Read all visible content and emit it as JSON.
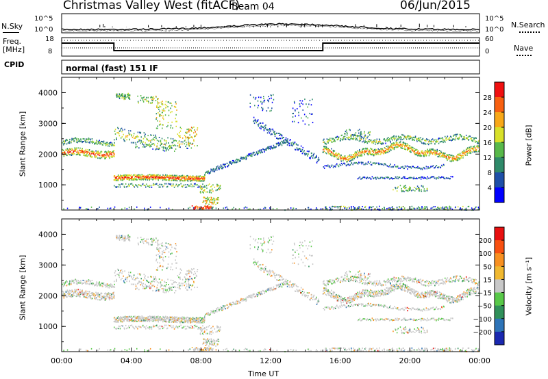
{
  "header": {
    "station": "Christmas Valley West (fitACF)",
    "beam": "Beam 04",
    "date": "06/Jun/2015"
  },
  "sky_panel": {
    "left_label": "N.Sky",
    "right_label": "N.Search",
    "left_ticks": [
      "10^5",
      "10^0"
    ],
    "right_ticks": [
      "10^5",
      "10^0"
    ]
  },
  "freq_panel": {
    "left_label_1": "Freq.",
    "left_label_2": "[MHz]",
    "right_label": "Nave",
    "left_ticks": [
      "18",
      "8"
    ],
    "right_ticks": [
      "60",
      "0"
    ]
  },
  "cpid": {
    "label": "CPID",
    "value": "normal (fast) 151 IF"
  },
  "chart_data": [
    {
      "type": "heatmap",
      "name": "power",
      "ylabel": "Slant Range [km]",
      "xlabel": "Time UT",
      "ylim": [
        180,
        4500
      ],
      "xlim": [
        0,
        24
      ],
      "yticks": [
        "1000",
        "2000",
        "3000",
        "4000"
      ],
      "xticks": [
        "00:00",
        "04:00",
        "08:00",
        "12:00",
        "16:00",
        "20:00",
        "00:00"
      ],
      "colorbar": {
        "label": "Power [dB]",
        "ticks": [
          "4",
          "8",
          "12",
          "16",
          "20",
          "24",
          "28"
        ],
        "colors": [
          "#0000ff",
          "#1e4fa8",
          "#2f8a6a",
          "#58b84a",
          "#d8e02a",
          "#f8a818",
          "#f86010",
          "#f01010"
        ]
      }
    },
    {
      "type": "heatmap",
      "name": "velocity",
      "ylabel": "Slant Range [km]",
      "xlabel": "Time UT",
      "ylim": [
        180,
        4500
      ],
      "xlim": [
        0,
        24
      ],
      "yticks": [
        "1000",
        "2000",
        "3000",
        "4000"
      ],
      "xticks": [
        "00:00",
        "04:00",
        "08:00",
        "12:00",
        "16:00",
        "20:00",
        "00:00"
      ],
      "colorbar": {
        "label": "Velocity [m s⁻¹]",
        "ticks": [
          "200",
          "100",
          "50",
          "15",
          "−15",
          "−50",
          "−100",
          "−200"
        ],
        "colors": [
          "#1a28b0",
          "#2e74b8",
          "#30905a",
          "#58c848",
          "#c8c8c8",
          "#f0b830",
          "#f89020",
          "#f85010",
          "#e81010"
        ]
      }
    }
  ]
}
